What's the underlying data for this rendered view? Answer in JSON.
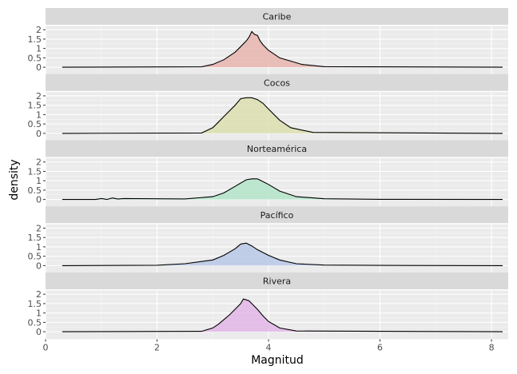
{
  "chart_data": {
    "type": "area",
    "xlabel": "Magnitud",
    "ylabel": "density",
    "xlim": [
      0,
      8.3
    ],
    "ylim": [
      -0.4,
      2.2
    ],
    "x_ticks": [
      0,
      2,
      4,
      6,
      8
    ],
    "y_ticks": [
      0,
      0.5,
      1,
      1.5,
      2
    ],
    "y_tick_labels": [
      "0",
      "0.5",
      "1",
      "1.5",
      "2"
    ],
    "x_range": [
      0.3,
      8.2
    ],
    "grid": true,
    "legend": "none",
    "series": [
      {
        "name": "Caribe",
        "color": "#e8b4ae",
        "x": [
          0.3,
          2.8,
          3.0,
          3.2,
          3.4,
          3.5,
          3.6,
          3.65,
          3.7,
          3.75,
          3.8,
          3.85,
          3.9,
          4.0,
          4.2,
          4.6,
          5.0,
          8.2
        ],
        "y": [
          0,
          0.02,
          0.15,
          0.4,
          0.8,
          1.1,
          1.4,
          1.6,
          1.9,
          1.75,
          1.7,
          1.4,
          1.2,
          0.9,
          0.5,
          0.15,
          0.03,
          0
        ]
      },
      {
        "name": "Cocos",
        "color": "#dcdfae",
        "x": [
          0.3,
          2.8,
          3.0,
          3.1,
          3.2,
          3.3,
          3.4,
          3.5,
          3.6,
          3.7,
          3.8,
          3.9,
          4.0,
          4.2,
          4.4,
          4.8,
          8.2
        ],
        "y": [
          0,
          0.02,
          0.3,
          0.6,
          0.9,
          1.2,
          1.5,
          1.85,
          1.9,
          1.9,
          1.8,
          1.6,
          1.3,
          0.7,
          0.3,
          0.05,
          0
        ]
      },
      {
        "name": "Norteamérica",
        "color": "#b4e4c8",
        "x": [
          0.3,
          0.9,
          1.0,
          1.1,
          1.2,
          1.3,
          1.4,
          2.5,
          3.0,
          3.2,
          3.4,
          3.6,
          3.7,
          3.8,
          3.9,
          4.0,
          4.2,
          4.5,
          5.0,
          6.0,
          8.2
        ],
        "y": [
          0,
          0,
          0.05,
          0,
          0.08,
          0.02,
          0.05,
          0.03,
          0.15,
          0.35,
          0.7,
          1.05,
          1.1,
          1.1,
          0.95,
          0.8,
          0.45,
          0.15,
          0.04,
          0.01,
          0
        ]
      },
      {
        "name": "Pacífico",
        "color": "#b8c8e6",
        "x": [
          0.3,
          2.0,
          2.5,
          3.0,
          3.2,
          3.4,
          3.5,
          3.6,
          3.7,
          3.8,
          4.0,
          4.2,
          4.5,
          5.0,
          6.0,
          8.2
        ],
        "y": [
          0,
          0.02,
          0.1,
          0.3,
          0.55,
          0.9,
          1.15,
          1.2,
          1.05,
          0.85,
          0.55,
          0.3,
          0.1,
          0.03,
          0.01,
          0
        ]
      },
      {
        "name": "Rivera",
        "color": "#e2b6e6",
        "x": [
          0.3,
          2.8,
          3.0,
          3.1,
          3.2,
          3.3,
          3.4,
          3.5,
          3.55,
          3.6,
          3.65,
          3.7,
          3.8,
          3.9,
          4.0,
          4.2,
          4.5,
          8.2
        ],
        "y": [
          0,
          0.02,
          0.2,
          0.4,
          0.65,
          0.9,
          1.2,
          1.5,
          1.75,
          1.7,
          1.65,
          1.5,
          1.2,
          0.85,
          0.55,
          0.2,
          0.04,
          0
        ]
      }
    ]
  }
}
